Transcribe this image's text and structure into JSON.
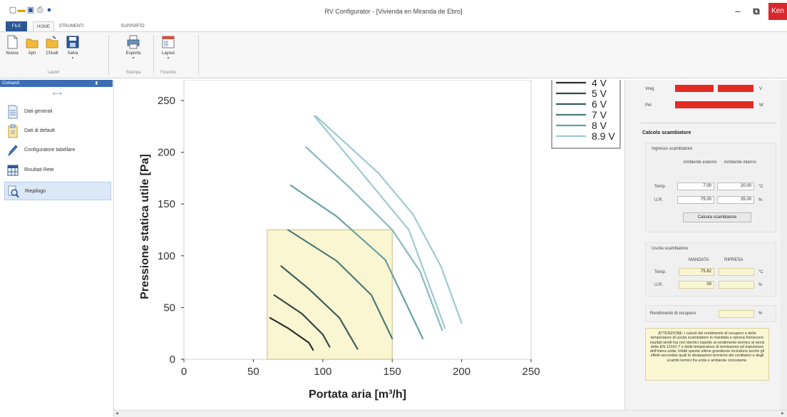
{
  "window": {
    "title": "RV Configurator - [Vivienda en Miranda de Ebro]",
    "close_label": "Ken"
  },
  "tabs": [
    "FILE",
    "HOME",
    "STRUMENTI",
    "SUPPORTO"
  ],
  "ribbon": {
    "buttons": [
      "Nuova",
      "Apri",
      "Chiudi",
      "Salva",
      "Esporta",
      "Layout"
    ],
    "groups": [
      "Lavori",
      "Stampa",
      "Finestre"
    ]
  },
  "sidebar": {
    "header": "Comandi",
    "items": [
      "Dati generali",
      "Dati di default",
      "Configuratore tabellare",
      "Risultati Rete",
      "Riepilogo"
    ]
  },
  "chart_data": {
    "type": "line",
    "xlabel": "Portata aria [m³/h]",
    "ylabel": "Pressione statica utile [Pa]",
    "xlim": [
      0,
      250
    ],
    "ylim": [
      0,
      270
    ],
    "xticks": [
      0,
      50,
      100,
      150,
      200,
      250
    ],
    "yticks": [
      0,
      50,
      100,
      150,
      200,
      250
    ],
    "grid": true,
    "legend_position": "top-right",
    "working_area": {
      "x": [
        60,
        150
      ],
      "y": [
        0,
        125
      ],
      "color": "#fbf6d2"
    },
    "series": [
      {
        "name": "4 V",
        "color": "#2d2d2d",
        "points": [
          [
            62,
            40
          ],
          [
            75,
            30
          ],
          [
            90,
            16
          ],
          [
            93,
            9
          ]
        ]
      },
      {
        "name": "5 V",
        "color": "#344844",
        "points": [
          [
            65,
            62
          ],
          [
            85,
            44
          ],
          [
            100,
            24
          ],
          [
            105,
            12
          ]
        ]
      },
      {
        "name": "6 V",
        "color": "#3a5e5a",
        "points": [
          [
            70,
            90
          ],
          [
            90,
            68
          ],
          [
            112,
            40
          ],
          [
            125,
            10
          ]
        ]
      },
      {
        "name": "7 V",
        "color": "#4a7c7a",
        "points": [
          [
            75,
            125
          ],
          [
            110,
            95
          ],
          [
            135,
            62
          ],
          [
            150,
            20
          ]
        ]
      },
      {
        "name": "8 V",
        "color": "#68a0a4",
        "points": [
          [
            77,
            168
          ],
          [
            110,
            138
          ],
          [
            145,
            96
          ],
          [
            172,
            20
          ]
        ]
      },
      {
        "name": "8.9 V",
        "color": "#9fc9d1",
        "points": [
          [
            94,
            235
          ],
          [
            125,
            185
          ],
          [
            162,
            125
          ],
          [
            188,
            30
          ]
        ]
      },
      {
        "name": "",
        "color": "#8ab9c0",
        "points": [
          [
            88,
            205
          ],
          [
            120,
            165
          ],
          [
            150,
            125
          ],
          [
            170,
            85
          ],
          [
            186,
            28
          ]
        ]
      },
      {
        "name": "",
        "color": "#9fc9d1",
        "points": [
          [
            95,
            235
          ],
          [
            140,
            180
          ],
          [
            165,
            140
          ],
          [
            185,
            90
          ],
          [
            200,
            35
          ]
        ]
      }
    ]
  },
  "right_panel": {
    "v_reg_label": "Vreg",
    "v_unit": "V",
    "pel_label": "Pel",
    "w_unit": "W",
    "title": "Calcolo scambiatore",
    "input_section": "Ingresso scambiatore",
    "col_external": "Ambiente esterno",
    "col_internal": "Ambiente interno",
    "temp_label": "Temp.",
    "ur_label": "U.R.",
    "temp_ext": "7.00",
    "temp_int": "20.00",
    "ur_ext": "75.00",
    "ur_int": "35.00",
    "unit_c": "°C",
    "unit_pct": "%",
    "calc_button": "Calcola scambiatore",
    "output_section": "Uscita scambiatore",
    "col_mandata": "MANDATA",
    "col_ripresa": "RIPRESA",
    "temp_mandata": "75.82",
    "ur_mandata": "00",
    "efficiency_label": "Rendimento di recupero",
    "warning_text": "ATTENZIONE: i calcoli del rendimento di recupero e delle temperature di uscita scambiatore in mandata e ripresa forniscono risultati simili ma non identici rispetto al rendimento termico ai sensi della EN 13141-7 e delle temperature di immissione ed espulsione dell'intera unità. Infatti queste ultime grandezze includono anche gli effetti secondari quali le dissipazioni termiche dei ventilatori e degli scambi termici fra unità e ambiente circostante."
  }
}
